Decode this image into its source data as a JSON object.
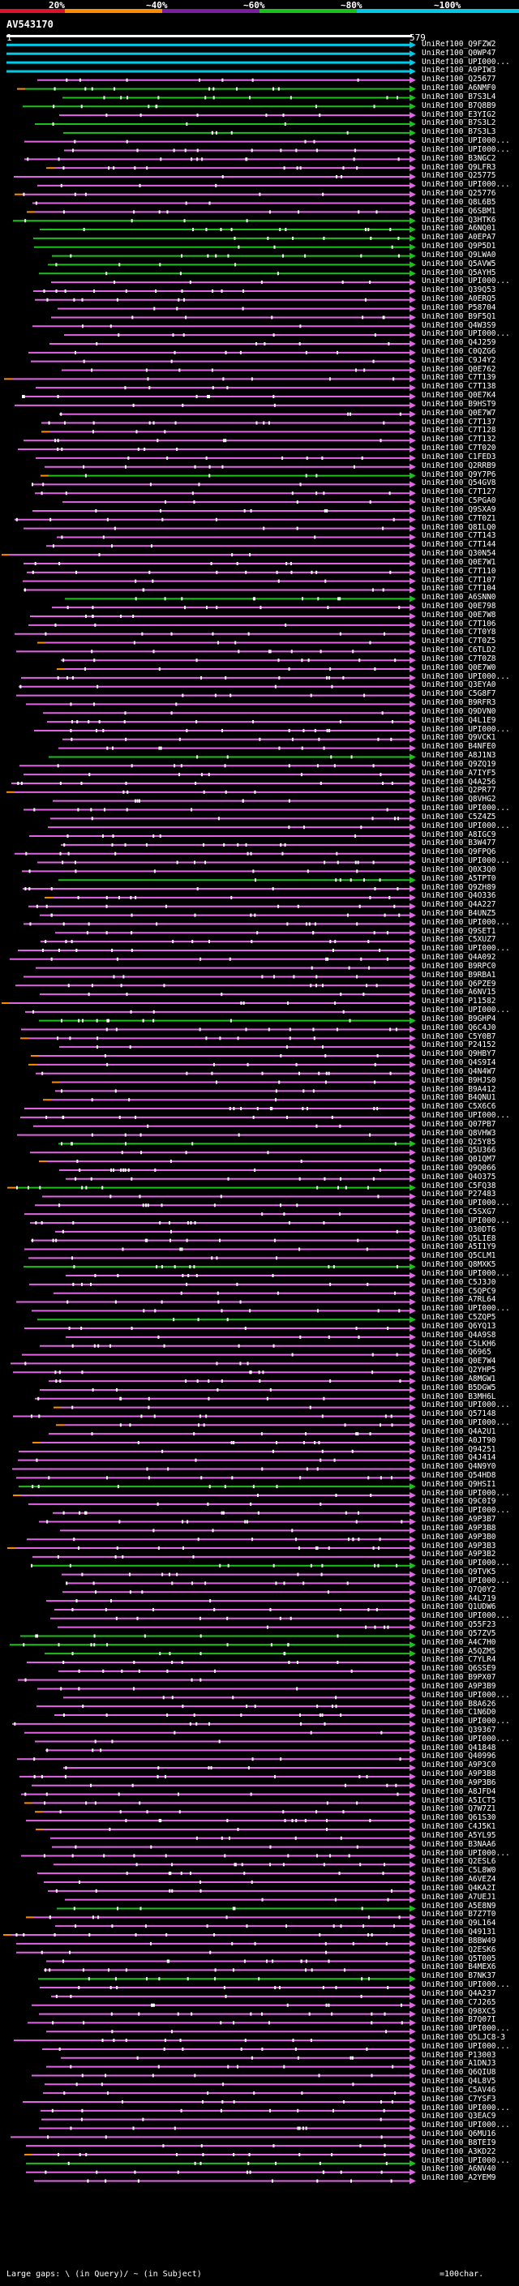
{
  "header": {
    "scale_labels": [
      "20%",
      "~40%",
      "~60%",
      "~80%",
      "~100%"
    ],
    "scale_colors": [
      "#e0112b",
      "#ff8c00",
      "#7a1fa2",
      "#19c119",
      "#00c8e6"
    ],
    "query_id": "AV543170",
    "axis_start": "1",
    "axis_end": "579"
  },
  "colors": {
    "background": "#000000",
    "hit_line_purple": "#e264e6",
    "hit_line_green": "#19c119",
    "hit_line_cyan": "#00c8e6",
    "gap_orange": "#ff8c00",
    "query_bar": "#ffffff"
  },
  "hits": [
    {
      "id": "UniRef100_Q9FZW2",
      "color": "cyan"
    },
    {
      "id": "UniRef100_Q0WP47",
      "color": "cyan"
    },
    {
      "id": "UniRef100_UPI000...",
      "color": "cyan"
    },
    {
      "id": "UniRef100_A9PIW3",
      "color": "cyan"
    },
    {
      "id": "UniRef100_Q25677",
      "color": "purple"
    },
    {
      "id": "UniRef100_A6NMF0",
      "color": "green"
    },
    {
      "id": "UniRef100_B7S3L4",
      "color": "green"
    },
    {
      "id": "UniRef100_B7Q8B9",
      "color": "green"
    },
    {
      "id": "UniRef100_E3YIG2",
      "color": "purple"
    },
    {
      "id": "UniRef100_B7S3L2",
      "color": "green"
    },
    {
      "id": "UniRef100_B7S3L3",
      "color": "green"
    },
    {
      "id": "UniRef100_UPI000...",
      "color": "purple"
    },
    {
      "id": "UniRef100_UPI000...",
      "color": "purple"
    },
    {
      "id": "UniRef100_B3NGC2",
      "color": "purple"
    },
    {
      "id": "UniRef100_Q9LFR3",
      "color": "purple"
    },
    {
      "id": "UniRef100_Q25775",
      "color": "purple"
    },
    {
      "id": "UniRef100_UPI000...",
      "color": "purple"
    },
    {
      "id": "UniRef100_Q25776",
      "color": "purple"
    },
    {
      "id": "UniRef100_Q8L6B5",
      "color": "purple"
    },
    {
      "id": "UniRef100_Q6SBM1",
      "color": "purple"
    },
    {
      "id": "UniRef100_Q3HTK6",
      "color": "green"
    },
    {
      "id": "UniRef100_A6NQ01",
      "color": "green"
    },
    {
      "id": "UniRef100_A0EPA7",
      "color": "green"
    },
    {
      "id": "UniRef100_Q9P5D1",
      "color": "green"
    },
    {
      "id": "UniRef100_Q9LWA0",
      "color": "green"
    },
    {
      "id": "UniRef100_Q5AVW5",
      "color": "green"
    },
    {
      "id": "UniRef100_Q5AYH5",
      "color": "green"
    },
    {
      "id": "UniRef100_UPI000...",
      "color": "purple"
    },
    {
      "id": "UniRef100_Q39Q53",
      "color": "purple"
    },
    {
      "id": "UniRef100_A0ERQ5",
      "color": "purple"
    },
    {
      "id": "UniRef100_P58704",
      "color": "purple"
    },
    {
      "id": "UniRef100_B9F5Q1",
      "color": "purple"
    },
    {
      "id": "UniRef100_Q4W3S9",
      "color": "purple"
    },
    {
      "id": "UniRef100_UPI000...",
      "color": "purple"
    },
    {
      "id": "UniRef100_Q4J259",
      "color": "purple"
    },
    {
      "id": "UniRef100_C0QZG6",
      "color": "purple"
    },
    {
      "id": "UniRef100_C9J4Y2",
      "color": "purple"
    },
    {
      "id": "UniRef100_Q0E762",
      "color": "purple"
    },
    {
      "id": "UniRef100_C7T139",
      "color": "purple"
    },
    {
      "id": "UniRef100_C7T138",
      "color": "purple"
    },
    {
      "id": "UniRef100_Q0E7K4",
      "color": "purple"
    },
    {
      "id": "UniRef100_B9HST9",
      "color": "purple"
    },
    {
      "id": "UniRef100_Q0E7W7",
      "color": "purple"
    },
    {
      "id": "UniRef100_C7T137",
      "color": "purple"
    },
    {
      "id": "UniRef100_C7T128",
      "color": "purple"
    },
    {
      "id": "UniRef100_C7T132",
      "color": "purple"
    },
    {
      "id": "UniRef100_C7T020",
      "color": "purple"
    },
    {
      "id": "UniRef100_C1FED3",
      "color": "purple"
    },
    {
      "id": "UniRef100_Q2RRB9",
      "color": "purple"
    },
    {
      "id": "UniRef100_Q9Y7P6",
      "color": "green"
    },
    {
      "id": "UniRef100_Q54GV8",
      "color": "purple"
    },
    {
      "id": "UniRef100_C7T127",
      "color": "purple"
    },
    {
      "id": "UniRef100_C5PGA0",
      "color": "purple"
    },
    {
      "id": "UniRef100_Q9SXA9",
      "color": "purple"
    },
    {
      "id": "UniRef100_C7T0Z1",
      "color": "purple"
    },
    {
      "id": "UniRef100_Q8ILQ0",
      "color": "purple"
    },
    {
      "id": "UniRef100_C7T143",
      "color": "purple"
    },
    {
      "id": "UniRef100_C7T144",
      "color": "purple"
    },
    {
      "id": "UniRef100_Q30N54",
      "color": "purple"
    },
    {
      "id": "UniRef100_Q0E7W1",
      "color": "purple"
    },
    {
      "id": "UniRef100_C7T110",
      "color": "purple"
    },
    {
      "id": "UniRef100_C7T107",
      "color": "purple"
    },
    {
      "id": "UniRef100_C7T104",
      "color": "purple"
    },
    {
      "id": "UniRef100_A6SNN0",
      "color": "green"
    },
    {
      "id": "UniRef100_Q0E798",
      "color": "purple"
    },
    {
      "id": "UniRef100_Q0E7W8",
      "color": "purple"
    },
    {
      "id": "UniRef100_C7T106",
      "color": "purple"
    },
    {
      "id": "UniRef100_C7T0Y8",
      "color": "purple"
    },
    {
      "id": "UniRef100_C7T0Z5",
      "color": "purple"
    },
    {
      "id": "UniRef100_C6TLD2",
      "color": "purple"
    },
    {
      "id": "UniRef100_C7T0Z8",
      "color": "purple"
    },
    {
      "id": "UniRef100_Q0E7W0",
      "color": "purple"
    },
    {
      "id": "UniRef100_UPI000...",
      "color": "purple"
    },
    {
      "id": "UniRef100_Q3EYA0",
      "color": "purple"
    },
    {
      "id": "UniRef100_C5G8F7",
      "color": "purple"
    },
    {
      "id": "UniRef100_B9RFR3",
      "color": "purple"
    },
    {
      "id": "UniRef100_Q9DVN0",
      "color": "purple"
    },
    {
      "id": "UniRef100_Q4L1E9",
      "color": "purple"
    },
    {
      "id": "UniRef100_UPI000...",
      "color": "purple"
    },
    {
      "id": "UniRef100_Q9VCK1",
      "color": "purple"
    },
    {
      "id": "UniRef100_B4NFE0",
      "color": "purple"
    },
    {
      "id": "UniRef100_A8J1N3",
      "color": "green"
    },
    {
      "id": "UniRef100_Q9ZQ19",
      "color": "purple"
    },
    {
      "id": "UniRef100_A7IYF5",
      "color": "purple"
    },
    {
      "id": "UniRef100_Q4A256",
      "color": "purple"
    },
    {
      "id": "UniRef100_Q2PR77",
      "color": "purple"
    },
    {
      "id": "UniRef100_Q8VHG2",
      "color": "purple"
    },
    {
      "id": "UniRef100_UPI000...",
      "color": "purple"
    },
    {
      "id": "UniRef100_C5Z4Z5",
      "color": "purple"
    },
    {
      "id": "UniRef100_UPI000...",
      "color": "purple"
    },
    {
      "id": "UniRef100_A8IGC9",
      "color": "purple"
    },
    {
      "id": "UniRef100_B3W477",
      "color": "purple"
    },
    {
      "id": "UniRef100_Q9FPQ6",
      "color": "purple"
    },
    {
      "id": "UniRef100_UPI000...",
      "color": "purple"
    },
    {
      "id": "UniRef100_Q0X3Q0",
      "color": "purple"
    },
    {
      "id": "UniRef100_A5TPT0",
      "color": "green"
    },
    {
      "id": "UniRef100_Q9ZH89",
      "color": "purple"
    },
    {
      "id": "UniRef100_Q4O336",
      "color": "purple"
    },
    {
      "id": "UniRef100_Q4A227",
      "color": "purple"
    },
    {
      "id": "UniRef100_B4UNZ5",
      "color": "purple"
    },
    {
      "id": "UniRef100_UPI000...",
      "color": "purple"
    },
    {
      "id": "UniRef100_Q9SET1",
      "color": "purple"
    },
    {
      "id": "UniRef100_C5XUZ7",
      "color": "purple"
    },
    {
      "id": "UniRef100_UPI000...",
      "color": "purple"
    },
    {
      "id": "UniRef100_Q4A092",
      "color": "purple"
    },
    {
      "id": "UniRef100_B9RPC0",
      "color": "purple"
    },
    {
      "id": "UniRef100_B9RBA1",
      "color": "purple"
    },
    {
      "id": "UniRef100_Q6PZE9",
      "color": "purple"
    },
    {
      "id": "UniRef100_A6NV15",
      "color": "purple"
    },
    {
      "id": "UniRef100_P11582",
      "color": "purple"
    },
    {
      "id": "UniRef100_UPI000...",
      "color": "purple"
    },
    {
      "id": "UniRef100_B9GHP4",
      "color": "green"
    },
    {
      "id": "UniRef100_Q6C4J0",
      "color": "purple"
    },
    {
      "id": "UniRef100_C5Y0B7",
      "color": "purple"
    },
    {
      "id": "UniRef100_P24152",
      "color": "purple"
    },
    {
      "id": "UniRef100_Q9HBY7",
      "color": "purple"
    },
    {
      "id": "UniRef100_Q4S9I4",
      "color": "purple"
    },
    {
      "id": "UniRef100_Q4N4W7",
      "color": "purple"
    },
    {
      "id": "UniRef100_B9HJS0",
      "color": "purple"
    },
    {
      "id": "UniRef100_B9A412",
      "color": "purple"
    },
    {
      "id": "UniRef100_B4QNU1",
      "color": "purple"
    },
    {
      "id": "UniRef100_C5X6C6",
      "color": "purple"
    },
    {
      "id": "UniRef100_UPI000...",
      "color": "purple"
    },
    {
      "id": "UniRef100_Q07PB7",
      "color": "purple"
    },
    {
      "id": "UniRef100_Q8VHW3",
      "color": "purple"
    },
    {
      "id": "UniRef100_Q25Y85",
      "color": "green"
    },
    {
      "id": "UniRef100_Q5U366",
      "color": "purple"
    },
    {
      "id": "UniRef100_Q01QM7",
      "color": "purple"
    },
    {
      "id": "UniRef100_Q9Q066",
      "color": "purple"
    },
    {
      "id": "UniRef100_Q4O375",
      "color": "purple"
    },
    {
      "id": "UniRef100_C5FQ38",
      "color": "green"
    },
    {
      "id": "UniRef100_P27483",
      "color": "purple"
    },
    {
      "id": "UniRef100_UPI000...",
      "color": "purple"
    },
    {
      "id": "UniRef100_C5SXG7",
      "color": "purple"
    },
    {
      "id": "UniRef100_UPI000...",
      "color": "purple"
    },
    {
      "id": "UniRef100_O30DT6",
      "color": "purple"
    },
    {
      "id": "UniRef100_Q5LIE8",
      "color": "purple"
    },
    {
      "id": "UniRef100_A5I1Y9",
      "color": "purple"
    },
    {
      "id": "UniRef100_Q5CLM1",
      "color": "purple"
    },
    {
      "id": "UniRef100_Q8MXK5",
      "color": "green"
    },
    {
      "id": "UniRef100_UPI000...",
      "color": "purple"
    },
    {
      "id": "UniRef100_C5J3J0",
      "color": "purple"
    },
    {
      "id": "UniRef100_C5QPC9",
      "color": "purple"
    },
    {
      "id": "UniRef100_A7RL64",
      "color": "purple"
    },
    {
      "id": "UniRef100_UPI000...",
      "color": "purple"
    },
    {
      "id": "UniRef100_C5ZQP5",
      "color": "green"
    },
    {
      "id": "UniRef100_Q6YQ13",
      "color": "purple"
    },
    {
      "id": "UniRef100_Q4A9S8",
      "color": "purple"
    },
    {
      "id": "UniRef100_C5LKH6",
      "color": "purple"
    },
    {
      "id": "UniRef100_Q6965",
      "color": "purple"
    },
    {
      "id": "UniRef100_Q0E7W4",
      "color": "purple"
    },
    {
      "id": "UniRef100_Q2YHP5",
      "color": "purple"
    },
    {
      "id": "UniRef100_A8MGW1",
      "color": "purple"
    },
    {
      "id": "UniRef100_B5DGW5",
      "color": "purple"
    },
    {
      "id": "UniRef100_B3MH6L",
      "color": "purple"
    },
    {
      "id": "UniRef100_UPI000...",
      "color": "purple"
    },
    {
      "id": "UniRef100_Q57148",
      "color": "purple"
    },
    {
      "id": "UniRef100_UPI000...",
      "color": "purple"
    },
    {
      "id": "UniRef100_Q4A2U1",
      "color": "purple"
    },
    {
      "id": "UniRef100_A0JT90",
      "color": "purple"
    },
    {
      "id": "UniRef100_Q94251",
      "color": "purple"
    },
    {
      "id": "UniRef100_Q4J414",
      "color": "purple"
    },
    {
      "id": "UniRef100_Q4N9Y0",
      "color": "purple"
    },
    {
      "id": "UniRef100_Q54HD8",
      "color": "purple"
    },
    {
      "id": "UniRef100_Q9HSI1",
      "color": "green"
    },
    {
      "id": "UniRef100_UPI000...",
      "color": "purple"
    },
    {
      "id": "UniRef100_Q9C0I9",
      "color": "purple"
    },
    {
      "id": "UniRef100_UPI000...",
      "color": "purple"
    },
    {
      "id": "UniRef100_A9P3B7",
      "color": "purple"
    },
    {
      "id": "UniRef100_A9P3B8",
      "color": "purple"
    },
    {
      "id": "UniRef100_A9P3B0",
      "color": "purple"
    },
    {
      "id": "UniRef100_A9P3B3",
      "color": "purple"
    },
    {
      "id": "UniRef100_A9P3B2",
      "color": "purple"
    },
    {
      "id": "UniRef100_UPI000...",
      "color": "green"
    },
    {
      "id": "UniRef100_Q9TVK5",
      "color": "purple"
    },
    {
      "id": "UniRef100_UPI000...",
      "color": "purple"
    },
    {
      "id": "UniRef100_Q7Q0Y2",
      "color": "purple"
    },
    {
      "id": "UniRef100_A4L719",
      "color": "purple"
    },
    {
      "id": "UniRef100_Q1UDW6",
      "color": "purple"
    },
    {
      "id": "UniRef100_UPI000...",
      "color": "purple"
    },
    {
      "id": "UniRef100_Q55F23",
      "color": "purple"
    },
    {
      "id": "UniRef100_Q57ZV5",
      "color": "green"
    },
    {
      "id": "UniRef100_A4C7H0",
      "color": "green"
    },
    {
      "id": "UniRef100_A5QZM5",
      "color": "green"
    },
    {
      "id": "UniRef100_C7YLR4",
      "color": "purple"
    },
    {
      "id": "UniRef100_Q6SSE9",
      "color": "purple"
    },
    {
      "id": "UniRef100_B9PX07",
      "color": "purple"
    },
    {
      "id": "UniRef100_A9P3B9",
      "color": "purple"
    },
    {
      "id": "UniRef100_UPI000...",
      "color": "purple"
    },
    {
      "id": "UniRef100_B8A626",
      "color": "purple"
    },
    {
      "id": "UniRef100_C1N6D0",
      "color": "purple"
    },
    {
      "id": "UniRef100_UPI000...",
      "color": "purple"
    },
    {
      "id": "UniRef100_Q39367",
      "color": "purple"
    },
    {
      "id": "UniRef100_UPI000...",
      "color": "purple"
    },
    {
      "id": "UniRef100_Q41848",
      "color": "purple"
    },
    {
      "id": "UniRef100_Q40996",
      "color": "purple"
    },
    {
      "id": "UniRef100_A9P3C0",
      "color": "purple"
    },
    {
      "id": "UniRef100_A9P3B8",
      "color": "purple"
    },
    {
      "id": "UniRef100_A9P3B6",
      "color": "purple"
    },
    {
      "id": "UniRef100_A8JFD4",
      "color": "purple"
    },
    {
      "id": "UniRef100_A5ICT5",
      "color": "purple"
    },
    {
      "id": "UniRef100_Q7W7Z1",
      "color": "purple"
    },
    {
      "id": "UniRef100_Q61S30",
      "color": "purple"
    },
    {
      "id": "UniRef100_C4J5K1",
      "color": "purple"
    },
    {
      "id": "UniRef100_A5YL95",
      "color": "purple"
    },
    {
      "id": "UniRef100_B3NAA6",
      "color": "purple"
    },
    {
      "id": "UniRef100_UPI000...",
      "color": "purple"
    },
    {
      "id": "UniRef100_Q2ESL6",
      "color": "purple"
    },
    {
      "id": "UniRef100_C5L8W0",
      "color": "purple"
    },
    {
      "id": "UniRef100_A6VEZ4",
      "color": "purple"
    },
    {
      "id": "UniRef100_Q4KA2I",
      "color": "purple"
    },
    {
      "id": "UniRef100_A7UEJ1",
      "color": "purple"
    },
    {
      "id": "UniRef100_A5E8N9",
      "color": "green"
    },
    {
      "id": "UniRef100_B7Z7T0",
      "color": "purple"
    },
    {
      "id": "UniRef100_Q9L164",
      "color": "purple"
    },
    {
      "id": "UniRef100_Q49131",
      "color": "purple"
    },
    {
      "id": "UniRef100_B8BW49",
      "color": "purple"
    },
    {
      "id": "UniRef100_Q2ESK6",
      "color": "purple"
    },
    {
      "id": "UniRef100_Q5T005",
      "color": "purple"
    },
    {
      "id": "UniRef100_B4MEX6",
      "color": "purple"
    },
    {
      "id": "UniRef100_B7NK37",
      "color": "green"
    },
    {
      "id": "UniRef100_UPI000...",
      "color": "purple"
    },
    {
      "id": "UniRef100_Q4A237",
      "color": "purple"
    },
    {
      "id": "UniRef100_C7J265",
      "color": "purple"
    },
    {
      "id": "UniRef100_Q98XC5",
      "color": "purple"
    },
    {
      "id": "UniRef100_B7Q07I",
      "color": "purple"
    },
    {
      "id": "UniRef100_UPI000...",
      "color": "purple"
    },
    {
      "id": "UniRef100_Q5LJC8-3",
      "color": "purple"
    },
    {
      "id": "UniRef100_UPI000...",
      "color": "purple"
    },
    {
      "id": "UniRef100_P13003",
      "color": "purple"
    },
    {
      "id": "UniRef100_A1DNJ3",
      "color": "purple"
    },
    {
      "id": "UniRef100_Q6QIU8",
      "color": "purple"
    },
    {
      "id": "UniRef100_Q4L8V5",
      "color": "purple"
    },
    {
      "id": "UniRef100_C5AV46",
      "color": "purple"
    },
    {
      "id": "UniRef100_C7YSF3",
      "color": "purple"
    },
    {
      "id": "UniRef100_UPI000...",
      "color": "purple"
    },
    {
      "id": "UniRef100_Q3EAC9",
      "color": "purple"
    },
    {
      "id": "UniRef100_UPI000...",
      "color": "purple"
    },
    {
      "id": "UniRef100_Q6MU16",
      "color": "purple"
    },
    {
      "id": "UniRef100_B8TEI9",
      "color": "purple"
    },
    {
      "id": "UniRef100_A3KD22",
      "color": "purple"
    },
    {
      "id": "UniRef100_UPI000...",
      "color": "green"
    },
    {
      "id": "UniRef100_A6NV40",
      "color": "purple"
    },
    {
      "id": "UniRef100_A2YEM9",
      "color": "purple"
    }
  ],
  "footer": {
    "legend_text": "Large gaps: \\ (in Query)/ ~ (in Subject)",
    "scale_note": "=100char."
  }
}
